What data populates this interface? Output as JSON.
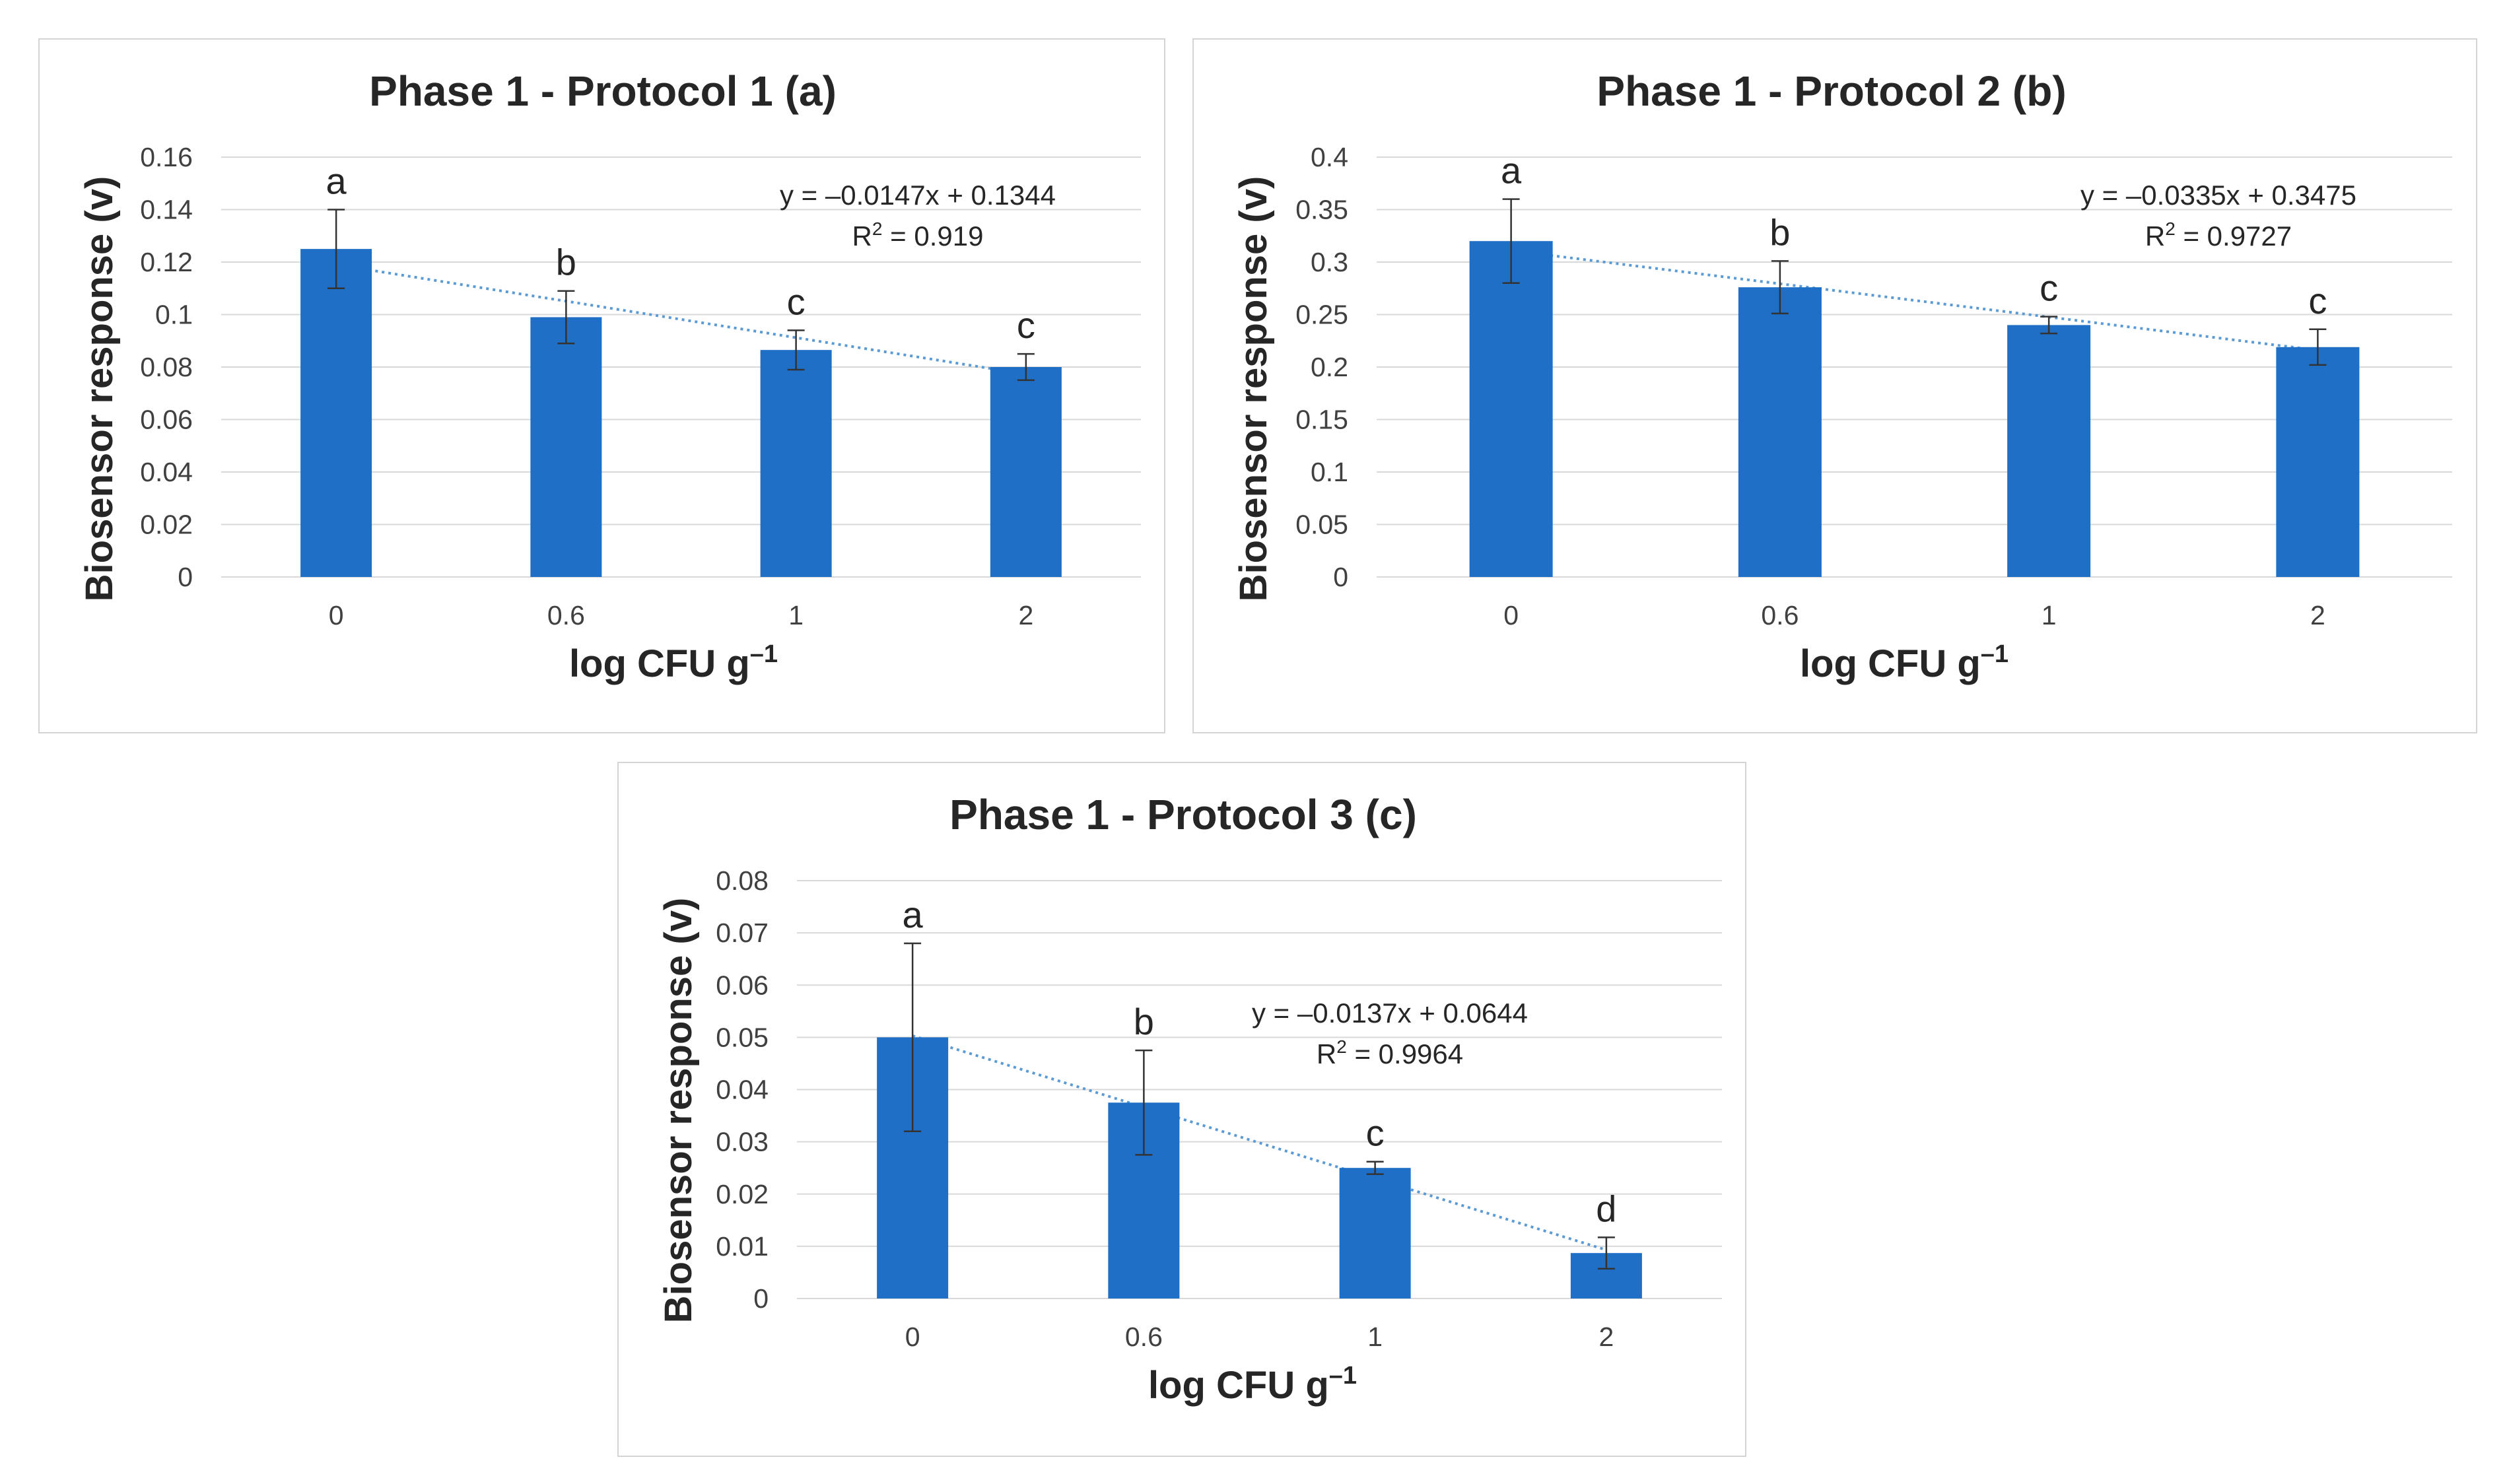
{
  "chart_data": [
    {
      "type": "bar",
      "title": "Phase 1 - Protocol 1 (a)",
      "xlabel": "log CFU g",
      "xlabel_sup": "–1",
      "ylabel": "Biosensor response (v)",
      "categories": [
        "0",
        "0.6",
        "1",
        "2"
      ],
      "values": [
        0.125,
        0.099,
        0.0865,
        0.08
      ],
      "errors": [
        0.015,
        0.01,
        0.0075,
        0.005
      ],
      "letters": [
        "a",
        "b",
        "c",
        "c"
      ],
      "ylim": [
        0,
        0.16
      ],
      "yticks": [
        "0",
        "0.02",
        "0.04",
        "0.06",
        "0.08",
        "0.1",
        "0.12",
        "0.14",
        "0.16"
      ],
      "grid": true,
      "trendline": {
        "type": "linear",
        "equation": "y = –0.0147x + 0.1344",
        "r2_prefix": "R",
        "r2_sup": "2",
        "r2_value": " = 0.919",
        "start": 0.119,
        "end": 0.0773
      }
    },
    {
      "type": "bar",
      "title": "Phase 1 - Protocol 2 (b)",
      "xlabel": "log CFU g",
      "xlabel_sup": "–1",
      "ylabel": "Biosensor response (v)",
      "categories": [
        "0",
        "0.6",
        "1",
        "2"
      ],
      "values": [
        0.32,
        0.276,
        0.24,
        0.219
      ],
      "errors": [
        0.04,
        0.025,
        0.008,
        0.017
      ],
      "letters": [
        "a",
        "b",
        "c",
        "c"
      ],
      "ylim": [
        0,
        0.4
      ],
      "yticks": [
        "0",
        "0.05",
        "0.1",
        "0.15",
        "0.2",
        "0.25",
        "0.3",
        "0.35",
        "0.4"
      ],
      "grid": true,
      "trendline": {
        "type": "linear",
        "equation": "y = –0.0335x + 0.3475",
        "r2_prefix": "R",
        "r2_sup": "2",
        "r2_value": " = 0.9727",
        "start": 0.311,
        "end": 0.216
      }
    },
    {
      "type": "bar",
      "title": "Phase 1 - Protocol 3 (c)",
      "xlabel": "log CFU g",
      "xlabel_sup": "–1",
      "ylabel": "Biosensor response (v)",
      "categories": [
        "0",
        "0.6",
        "1",
        "2"
      ],
      "values": [
        0.05,
        0.0375,
        0.025,
        0.0087
      ],
      "errors": [
        0.018,
        0.01,
        0.0012,
        0.003
      ],
      "letters": [
        "a",
        "b",
        "c",
        "d"
      ],
      "ylim": [
        0,
        0.08
      ],
      "yticks": [
        "0",
        "0.01",
        "0.02",
        "0.03",
        "0.04",
        "0.05",
        "0.06",
        "0.07",
        "0.08"
      ],
      "grid": true,
      "trendline": {
        "type": "linear",
        "equation": "y = –0.0137x + 0.0644",
        "r2_prefix": "R",
        "r2_sup": "2",
        "r2_value": " = 0.9964",
        "start": 0.0503,
        "end": 0.0093
      }
    }
  ],
  "colors": {
    "bar": "#1f6fc6",
    "trendline": "#5b9bd5",
    "gridline": "#d9d9d9"
  }
}
